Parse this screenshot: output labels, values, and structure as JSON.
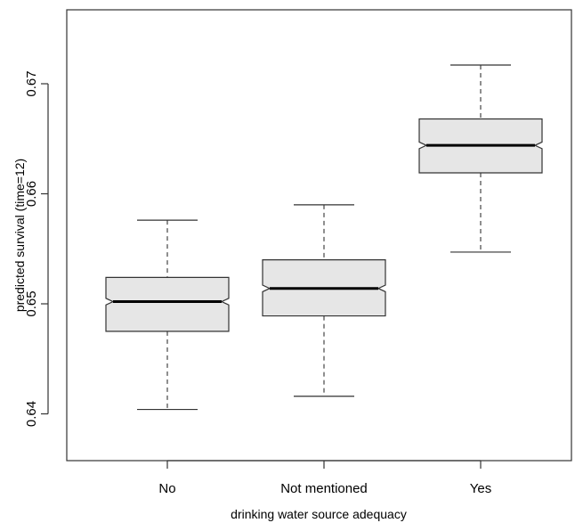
{
  "chart_data": {
    "type": "boxplot",
    "notched": true,
    "categories": [
      "No",
      "Not mentioned",
      "Yes"
    ],
    "boxes": [
      {
        "category": "No",
        "whisker_low": 0.6404,
        "q1": 0.6475,
        "median": 0.6502,
        "q3": 0.6524,
        "whisker_high": 0.6576,
        "notch_low": 0.6499,
        "notch_high": 0.6505
      },
      {
        "category": "Not mentioned",
        "whisker_low": 0.6416,
        "q1": 0.6489,
        "median": 0.6514,
        "q3": 0.654,
        "whisker_high": 0.659,
        "notch_low": 0.6511,
        "notch_high": 0.6517
      },
      {
        "category": "Yes",
        "whisker_low": 0.6547,
        "q1": 0.6619,
        "median": 0.6644,
        "q3": 0.6668,
        "whisker_high": 0.6717,
        "notch_low": 0.6641,
        "notch_high": 0.6647
      }
    ],
    "xlabel": "drinking water source adequacy",
    "ylabel": "predicted survival (time=12)",
    "yticks": [
      0.64,
      0.65,
      0.66,
      0.67
    ],
    "ytick_labels": [
      "0.64",
      "0.65",
      "0.66",
      "0.67"
    ],
    "ylim": [
      0.6354,
      0.676
    ],
    "grid": false,
    "legend": "none",
    "colors": {
      "box_fill": "#e6e6e6",
      "stroke": "#333333",
      "median": "#000000"
    }
  }
}
